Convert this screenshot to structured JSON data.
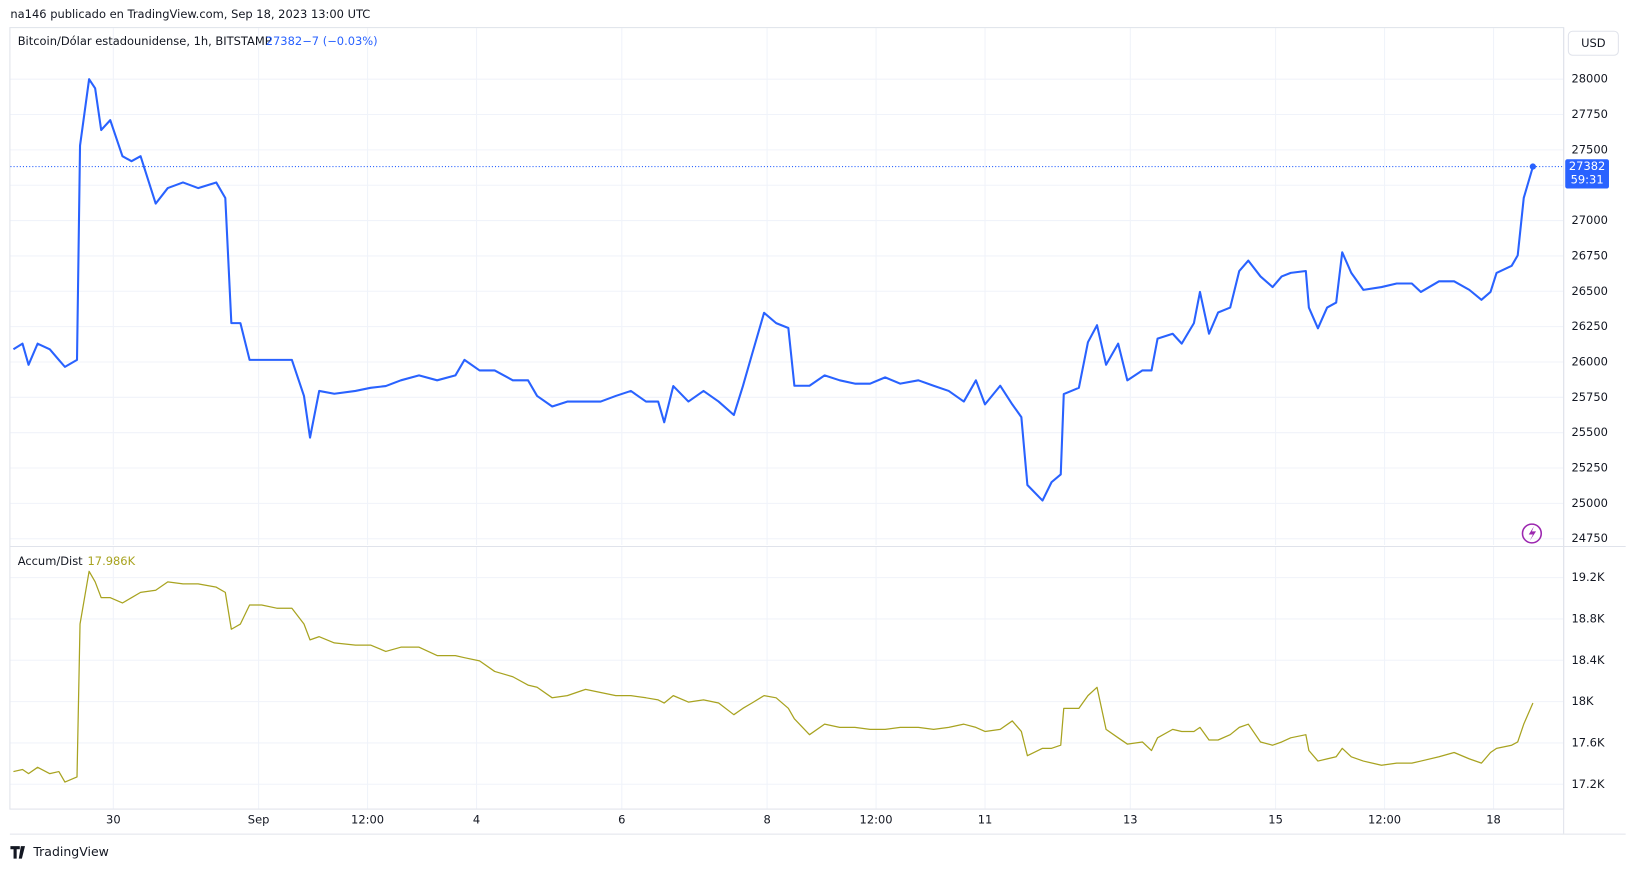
{
  "header": "na146 publicado en TradingView.com, Sep 18, 2023 13:00 UTC",
  "footer": "TradingView",
  "chart_data": [
    {
      "type": "line",
      "currency": "USD",
      "change": "−7 (−0.03%)",
      "countdown": "59:31",
      "last_value": 27382,
      "x": [
        "2023-08-28T15:00",
        "2023-08-28T18:00",
        "2023-08-28T20:00",
        "2023-08-28T23:00",
        "2023-08-29T03:00",
        "2023-08-29T06:00",
        "2023-08-29T08:00",
        "2023-08-29T12:00",
        "2023-08-29T13:00",
        "2023-08-29T16:00",
        "2023-08-29T18:00",
        "2023-08-29T20:00",
        "2023-08-29T23:00",
        "2023-08-30T03:00",
        "2023-08-30T06:00",
        "2023-08-30T09:00",
        "2023-08-30T14:00",
        "2023-08-30T18:00",
        "2023-08-30T23:00",
        "2023-08-31T04:00",
        "2023-08-31T10:00",
        "2023-08-31T13:00",
        "2023-08-31T15:00",
        "2023-08-31T18:00",
        "2023-08-31T21:00",
        "2023-09-01T01:00",
        "2023-09-01T06:00",
        "2023-09-01T11:00",
        "2023-09-01T15:00",
        "2023-09-01T17:00",
        "2023-09-01T20:00",
        "2023-09-02T01:00",
        "2023-09-02T08:00",
        "2023-09-02T13:00",
        "2023-09-02T18:00",
        "2023-09-02T23:00",
        "2023-09-03T05:00",
        "2023-09-03T11:00",
        "2023-09-03T17:00",
        "2023-09-03T20:00",
        "2023-09-04T01:00",
        "2023-09-04T06:00",
        "2023-09-04T12:00",
        "2023-09-04T17:00",
        "2023-09-04T20:00",
        "2023-09-05T01:00",
        "2023-09-05T06:00",
        "2023-09-05T12:00",
        "2023-09-05T17:00",
        "2023-09-05T22:00",
        "2023-09-06T03:00",
        "2023-09-06T08:00",
        "2023-09-06T12:00",
        "2023-09-06T14:00",
        "2023-09-06T17:00",
        "2023-09-06T22:00",
        "2023-09-07T03:00",
        "2023-09-07T08:00",
        "2023-09-07T13:00",
        "2023-09-07T16:00",
        "2023-09-07T19:00",
        "2023-09-07T23:00",
        "2023-09-08T03:00",
        "2023-09-08T07:00",
        "2023-09-08T09:00",
        "2023-09-08T14:00",
        "2023-09-08T19:00",
        "2023-09-09T00:00",
        "2023-09-09T05:00",
        "2023-09-09T10:00",
        "2023-09-09T15:00",
        "2023-09-09T20:00",
        "2023-09-10T02:00",
        "2023-09-10T07:00",
        "2023-09-10T12:00",
        "2023-09-10T17:00",
        "2023-09-10T21:00",
        "2023-09-11T00:00",
        "2023-09-11T05:00",
        "2023-09-11T09:00",
        "2023-09-11T12:00",
        "2023-09-11T14:00",
        "2023-09-11T19:00",
        "2023-09-11T22:00",
        "2023-09-12T01:00",
        "2023-09-12T02:00",
        "2023-09-12T07:00",
        "2023-09-12T10:00",
        "2023-09-12T13:00",
        "2023-09-12T16:00",
        "2023-09-12T20:00",
        "2023-09-12T23:00",
        "2023-09-13T04:00",
        "2023-09-13T07:00",
        "2023-09-13T09:00",
        "2023-09-13T14:00",
        "2023-09-13T17:00",
        "2023-09-13T21:00",
        "2023-09-13T23:00",
        "2023-09-14T02:00",
        "2023-09-14T05:00",
        "2023-09-14T09:00",
        "2023-09-14T12:00",
        "2023-09-14T15:00",
        "2023-09-14T19:00",
        "2023-09-14T23:00",
        "2023-09-15T02:00",
        "2023-09-15T05:00",
        "2023-09-15T10:00",
        "2023-09-15T11:00",
        "2023-09-15T14:00",
        "2023-09-15T17:00",
        "2023-09-15T20:00",
        "2023-09-15T22:00",
        "2023-09-16T01:00",
        "2023-09-16T05:00",
        "2023-09-16T11:00",
        "2023-09-16T16:00",
        "2023-09-16T21:00",
        "2023-09-17T00:00",
        "2023-09-17T06:00",
        "2023-09-17T11:00",
        "2023-09-17T16:00",
        "2023-09-17T20:00",
        "2023-09-17T23:00",
        "2023-09-18T01:00",
        "2023-09-18T06:00",
        "2023-09-18T08:00",
        "2023-09-18T10:00",
        "2023-09-18T13:00"
      ],
      "series": [
        {
          "name": "Bitcoin/Dólar estadounidense, 1h, BITSTAMP",
          "color": "#2962ff",
          "values": [
            26090,
            26130,
            25980,
            26130,
            26090,
            26015,
            25965,
            26015,
            27530,
            28000,
            27935,
            27640,
            27710,
            27455,
            27420,
            27455,
            27120,
            27230,
            27270,
            27230,
            27270,
            27160,
            26275,
            26275,
            26015,
            26015,
            26015,
            26015,
            25760,
            25465,
            25795,
            25775,
            25795,
            25817,
            25830,
            25870,
            25905,
            25870,
            25905,
            26015,
            25940,
            25940,
            25870,
            25870,
            25760,
            25685,
            25720,
            25720,
            25720,
            25760,
            25795,
            25720,
            25720,
            25573,
            25830,
            25720,
            25795,
            25720,
            25625,
            25830,
            26053,
            26348,
            26275,
            26240,
            25832,
            25832,
            25905,
            25870,
            25847,
            25847,
            25891,
            25847,
            25870,
            25832,
            25795,
            25720,
            25870,
            25700,
            25832,
            25700,
            25610,
            25130,
            25020,
            25150,
            25205,
            25773,
            25817,
            26140,
            26260,
            25980,
            26130,
            25870,
            25940,
            25940,
            26165,
            26200,
            26130,
            26275,
            26495,
            26200,
            26350,
            26385,
            26643,
            26717,
            26605,
            26530,
            26605,
            26630,
            26643,
            26385,
            26238,
            26385,
            26420,
            26776,
            26630,
            26510,
            26530,
            26555,
            26555,
            26495,
            26570,
            26570,
            26510,
            26440,
            26495,
            26630,
            26680,
            26754,
            27160,
            27382
          ]
        }
      ],
      "xlim": [
        "2023-08-28T14:00",
        "2023-09-18T23:00"
      ],
      "xticks": [
        {
          "value": "2023-08-30T00:00",
          "label": "30"
        },
        {
          "value": "2023-09-01T00:00",
          "label": "Sep"
        },
        {
          "value": "2023-09-02T12:00",
          "label": "12:00"
        },
        {
          "value": "2023-09-04T00:00",
          "label": "4"
        },
        {
          "value": "2023-09-06T00:00",
          "label": "6"
        },
        {
          "value": "2023-09-08T00:00",
          "label": "8"
        },
        {
          "value": "2023-09-09T12:00",
          "label": "12:00"
        },
        {
          "value": "2023-09-11T00:00",
          "label": "11"
        },
        {
          "value": "2023-09-13T00:00",
          "label": "13"
        },
        {
          "value": "2023-09-15T00:00",
          "label": "15"
        },
        {
          "value": "2023-09-16T12:00",
          "label": "12:00"
        },
        {
          "value": "2023-09-18T00:00",
          "label": "18"
        }
      ],
      "ylim": [
        24706,
        28361
      ],
      "yticks": [
        24750,
        25000,
        25250,
        25500,
        25750,
        26000,
        26250,
        26500,
        26750,
        27000,
        27250,
        27500,
        27750,
        28000
      ],
      "grid": true
    },
    {
      "type": "line",
      "last_value": 17986,
      "last_value_label": "17.986K",
      "x": [
        "2023-08-28T15:00",
        "2023-08-28T18:00",
        "2023-08-28T20:00",
        "2023-08-28T23:00",
        "2023-08-29T03:00",
        "2023-08-29T06:00",
        "2023-08-29T08:00",
        "2023-08-29T12:00",
        "2023-08-29T13:00",
        "2023-08-29T16:00",
        "2023-08-29T18:00",
        "2023-08-29T20:00",
        "2023-08-29T23:00",
        "2023-08-30T03:00",
        "2023-08-30T06:00",
        "2023-08-30T09:00",
        "2023-08-30T14:00",
        "2023-08-30T18:00",
        "2023-08-30T23:00",
        "2023-08-31T04:00",
        "2023-08-31T10:00",
        "2023-08-31T13:00",
        "2023-08-31T15:00",
        "2023-08-31T18:00",
        "2023-08-31T21:00",
        "2023-09-01T01:00",
        "2023-09-01T06:00",
        "2023-09-01T11:00",
        "2023-09-01T15:00",
        "2023-09-01T17:00",
        "2023-09-01T20:00",
        "2023-09-02T01:00",
        "2023-09-02T08:00",
        "2023-09-02T13:00",
        "2023-09-02T18:00",
        "2023-09-02T23:00",
        "2023-09-03T05:00",
        "2023-09-03T11:00",
        "2023-09-03T17:00",
        "2023-09-03T20:00",
        "2023-09-04T01:00",
        "2023-09-04T06:00",
        "2023-09-04T12:00",
        "2023-09-04T17:00",
        "2023-09-04T20:00",
        "2023-09-05T01:00",
        "2023-09-05T06:00",
        "2023-09-05T12:00",
        "2023-09-05T17:00",
        "2023-09-05T22:00",
        "2023-09-06T03:00",
        "2023-09-06T08:00",
        "2023-09-06T12:00",
        "2023-09-06T14:00",
        "2023-09-06T17:00",
        "2023-09-06T22:00",
        "2023-09-07T03:00",
        "2023-09-07T08:00",
        "2023-09-07T13:00",
        "2023-09-07T16:00",
        "2023-09-07T19:00",
        "2023-09-07T23:00",
        "2023-09-08T03:00",
        "2023-09-08T07:00",
        "2023-09-08T09:00",
        "2023-09-08T14:00",
        "2023-09-08T19:00",
        "2023-09-09T00:00",
        "2023-09-09T05:00",
        "2023-09-09T10:00",
        "2023-09-09T15:00",
        "2023-09-09T20:00",
        "2023-09-10T02:00",
        "2023-09-10T07:00",
        "2023-09-10T12:00",
        "2023-09-10T17:00",
        "2023-09-10T21:00",
        "2023-09-11T00:00",
        "2023-09-11T05:00",
        "2023-09-11T09:00",
        "2023-09-11T12:00",
        "2023-09-11T14:00",
        "2023-09-11T19:00",
        "2023-09-11T22:00",
        "2023-09-12T01:00",
        "2023-09-12T02:00",
        "2023-09-12T07:00",
        "2023-09-12T10:00",
        "2023-09-12T13:00",
        "2023-09-12T16:00",
        "2023-09-12T20:00",
        "2023-09-12T23:00",
        "2023-09-13T04:00",
        "2023-09-13T07:00",
        "2023-09-13T09:00",
        "2023-09-13T14:00",
        "2023-09-13T17:00",
        "2023-09-13T21:00",
        "2023-09-13T23:00",
        "2023-09-14T02:00",
        "2023-09-14T05:00",
        "2023-09-14T09:00",
        "2023-09-14T12:00",
        "2023-09-14T15:00",
        "2023-09-14T19:00",
        "2023-09-14T23:00",
        "2023-09-15T02:00",
        "2023-09-15T05:00",
        "2023-09-15T10:00",
        "2023-09-15T11:00",
        "2023-09-15T14:00",
        "2023-09-15T17:00",
        "2023-09-15T20:00",
        "2023-09-15T22:00",
        "2023-09-16T01:00",
        "2023-09-16T05:00",
        "2023-09-16T11:00",
        "2023-09-16T16:00",
        "2023-09-16T21:00",
        "2023-09-17T00:00",
        "2023-09-17T06:00",
        "2023-09-17T11:00",
        "2023-09-17T16:00",
        "2023-09-17T20:00",
        "2023-09-17T23:00",
        "2023-09-18T01:00",
        "2023-09-18T06:00",
        "2023-09-18T08:00",
        "2023-09-18T10:00",
        "2023-09-18T13:00"
      ],
      "series": [
        {
          "name": "Accum/Dist",
          "color": "#a8a320",
          "values": [
            17323,
            17343,
            17303,
            17364,
            17303,
            17323,
            17221,
            17272,
            18751,
            19261,
            19159,
            19006,
            19006,
            18955,
            19006,
            19057,
            19078,
            19159,
            19139,
            19139,
            19108,
            19057,
            18700,
            18751,
            18935,
            18935,
            18904,
            18904,
            18751,
            18598,
            18629,
            18568,
            18547,
            18547,
            18486,
            18527,
            18527,
            18445,
            18445,
            18425,
            18394,
            18292,
            18241,
            18160,
            18139,
            18037,
            18058,
            18119,
            18088,
            18058,
            18058,
            18037,
            18017,
            17986,
            18058,
            17996,
            18017,
            17986,
            17874,
            17935,
            17986,
            18058,
            18037,
            17935,
            17833,
            17680,
            17782,
            17751,
            17751,
            17731,
            17731,
            17751,
            17751,
            17731,
            17751,
            17782,
            17751,
            17711,
            17731,
            17813,
            17711,
            17476,
            17548,
            17548,
            17578,
            17935,
            17935,
            18058,
            18139,
            17731,
            17650,
            17589,
            17609,
            17527,
            17650,
            17731,
            17711,
            17711,
            17751,
            17629,
            17629,
            17680,
            17751,
            17782,
            17609,
            17578,
            17609,
            17650,
            17680,
            17527,
            17425,
            17446,
            17466,
            17548,
            17466,
            17425,
            17384,
            17405,
            17405,
            17425,
            17466,
            17507,
            17446,
            17405,
            17507,
            17548,
            17578,
            17609,
            17782,
            17986
          ]
        }
      ],
      "xlim": [
        "2023-08-28T14:00",
        "2023-09-18T23:00"
      ],
      "xticks": [
        {
          "value": "2023-08-30T00:00",
          "label": "30"
        },
        {
          "value": "2023-09-01T00:00",
          "label": "Sep"
        },
        {
          "value": "2023-09-02T12:00",
          "label": "12:00"
        },
        {
          "value": "2023-09-04T00:00",
          "label": "4"
        },
        {
          "value": "2023-09-06T00:00",
          "label": "6"
        },
        {
          "value": "2023-09-08T00:00",
          "label": "8"
        },
        {
          "value": "2023-09-09T12:00",
          "label": "12:00"
        },
        {
          "value": "2023-09-11T00:00",
          "label": "11"
        },
        {
          "value": "2023-09-13T00:00",
          "label": "13"
        },
        {
          "value": "2023-09-15T00:00",
          "label": "15"
        },
        {
          "value": "2023-09-16T12:00",
          "label": "12:00"
        },
        {
          "value": "2023-09-18T00:00",
          "label": "18"
        }
      ],
      "ylim": [
        16965,
        19496
      ],
      "yticks": [
        {
          "value": 17200,
          "label": "17.2K"
        },
        {
          "value": 17600,
          "label": "17.6K"
        },
        {
          "value": 18000,
          "label": "18K"
        },
        {
          "value": 18400,
          "label": "18.4K"
        },
        {
          "value": 18800,
          "label": "18.8K"
        },
        {
          "value": 19200,
          "label": "19.2K"
        }
      ],
      "grid": true
    }
  ]
}
